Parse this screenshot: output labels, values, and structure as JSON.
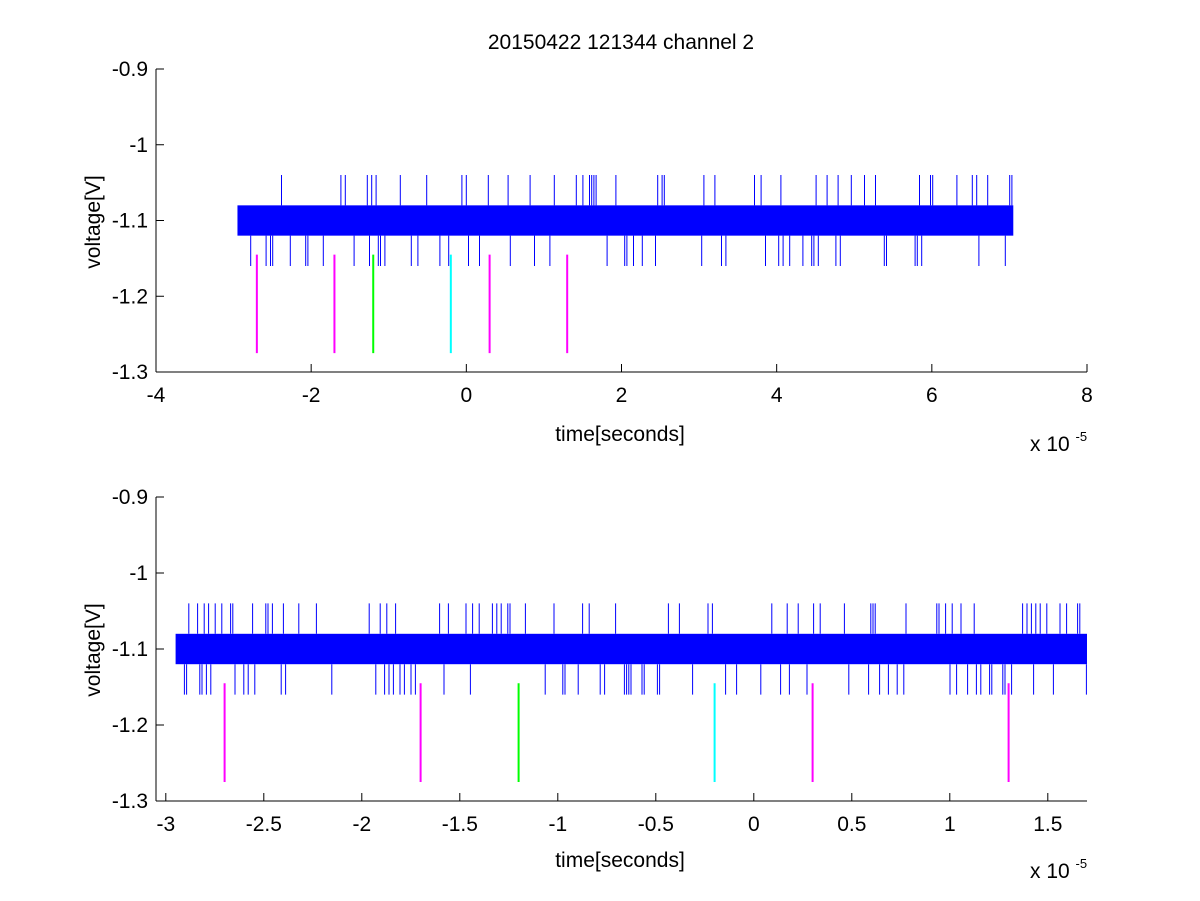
{
  "figure": {
    "title": "20150422 121344 channel 2"
  },
  "chart_data": [
    {
      "type": "line",
      "title": "20150422 121344 channel 2",
      "xlabel": "time[seconds]",
      "ylabel": "voltage[V]",
      "x_exponent_label": "x 10",
      "x_exponent": "-5",
      "xlim": [
        -4,
        8
      ],
      "ylim": [
        -1.3,
        -0.9
      ],
      "xticks": [
        -4,
        -2,
        0,
        2,
        4,
        6,
        8
      ],
      "xtick_labels": [
        "-4",
        "-2",
        "0",
        "2",
        "4",
        "6",
        "8"
      ],
      "yticks": [
        -1.3,
        -1.2,
        -1.1,
        -1.0,
        -0.9
      ],
      "ytick_labels": [
        "-1.3",
        "-1.2",
        "-1.1",
        "-1",
        "-0.9"
      ],
      "grid": false,
      "series": [
        {
          "kind": "signal",
          "color": "#0000ff",
          "x_range": [
            -2.95,
            7.05
          ],
          "core_band": [
            -1.12,
            -1.08
          ],
          "spike_levels": [
            -1.16,
            -1.04
          ]
        }
      ],
      "markers": [
        {
          "x": -2.7,
          "y_range": [
            -1.275,
            -1.145
          ],
          "color": "#ff00ff"
        },
        {
          "x": -1.7,
          "y_range": [
            -1.275,
            -1.145
          ],
          "color": "#ff00ff"
        },
        {
          "x": -1.2,
          "y_range": [
            -1.275,
            -1.145
          ],
          "color": "#00ff00"
        },
        {
          "x": -0.2,
          "y_range": [
            -1.275,
            -1.145
          ],
          "color": "#00ffff"
        },
        {
          "x": 0.3,
          "y_range": [
            -1.275,
            -1.145
          ],
          "color": "#ff00ff"
        },
        {
          "x": 1.3,
          "y_range": [
            -1.275,
            -1.145
          ],
          "color": "#ff00ff"
        }
      ]
    },
    {
      "type": "line",
      "xlabel": "time[seconds]",
      "ylabel": "voltage[V]",
      "x_exponent_label": "x 10",
      "x_exponent": "-5",
      "xlim": [
        -3.05,
        1.7
      ],
      "ylim": [
        -1.3,
        -0.9
      ],
      "xticks": [
        -3,
        -2.5,
        -2,
        -1.5,
        -1,
        -0.5,
        0,
        0.5,
        1,
        1.5
      ],
      "xtick_labels": [
        "-3",
        "-2.5",
        "-2",
        "-1.5",
        "-1",
        "-0.5",
        "0",
        "0.5",
        "1",
        "1.5"
      ],
      "yticks": [
        -1.3,
        -1.2,
        -1.1,
        -1.0,
        -0.9
      ],
      "ytick_labels": [
        "-1.3",
        "-1.2",
        "-1.1",
        "-1",
        "-0.9"
      ],
      "grid": false,
      "series": [
        {
          "kind": "signal",
          "color": "#0000ff",
          "x_range": [
            -2.95,
            1.7
          ],
          "core_band": [
            -1.12,
            -1.08
          ],
          "spike_levels": [
            -1.16,
            -1.04
          ]
        }
      ],
      "markers": [
        {
          "x": -2.7,
          "y_range": [
            -1.275,
            -1.145
          ],
          "color": "#ff00ff"
        },
        {
          "x": -1.7,
          "y_range": [
            -1.275,
            -1.145
          ],
          "color": "#ff00ff"
        },
        {
          "x": -1.2,
          "y_range": [
            -1.275,
            -1.145
          ],
          "color": "#00ff00"
        },
        {
          "x": -0.2,
          "y_range": [
            -1.275,
            -1.145
          ],
          "color": "#00ffff"
        },
        {
          "x": 0.3,
          "y_range": [
            -1.275,
            -1.145
          ],
          "color": "#ff00ff"
        },
        {
          "x": 1.3,
          "y_range": [
            -1.275,
            -1.145
          ],
          "color": "#ff00ff"
        }
      ]
    }
  ]
}
